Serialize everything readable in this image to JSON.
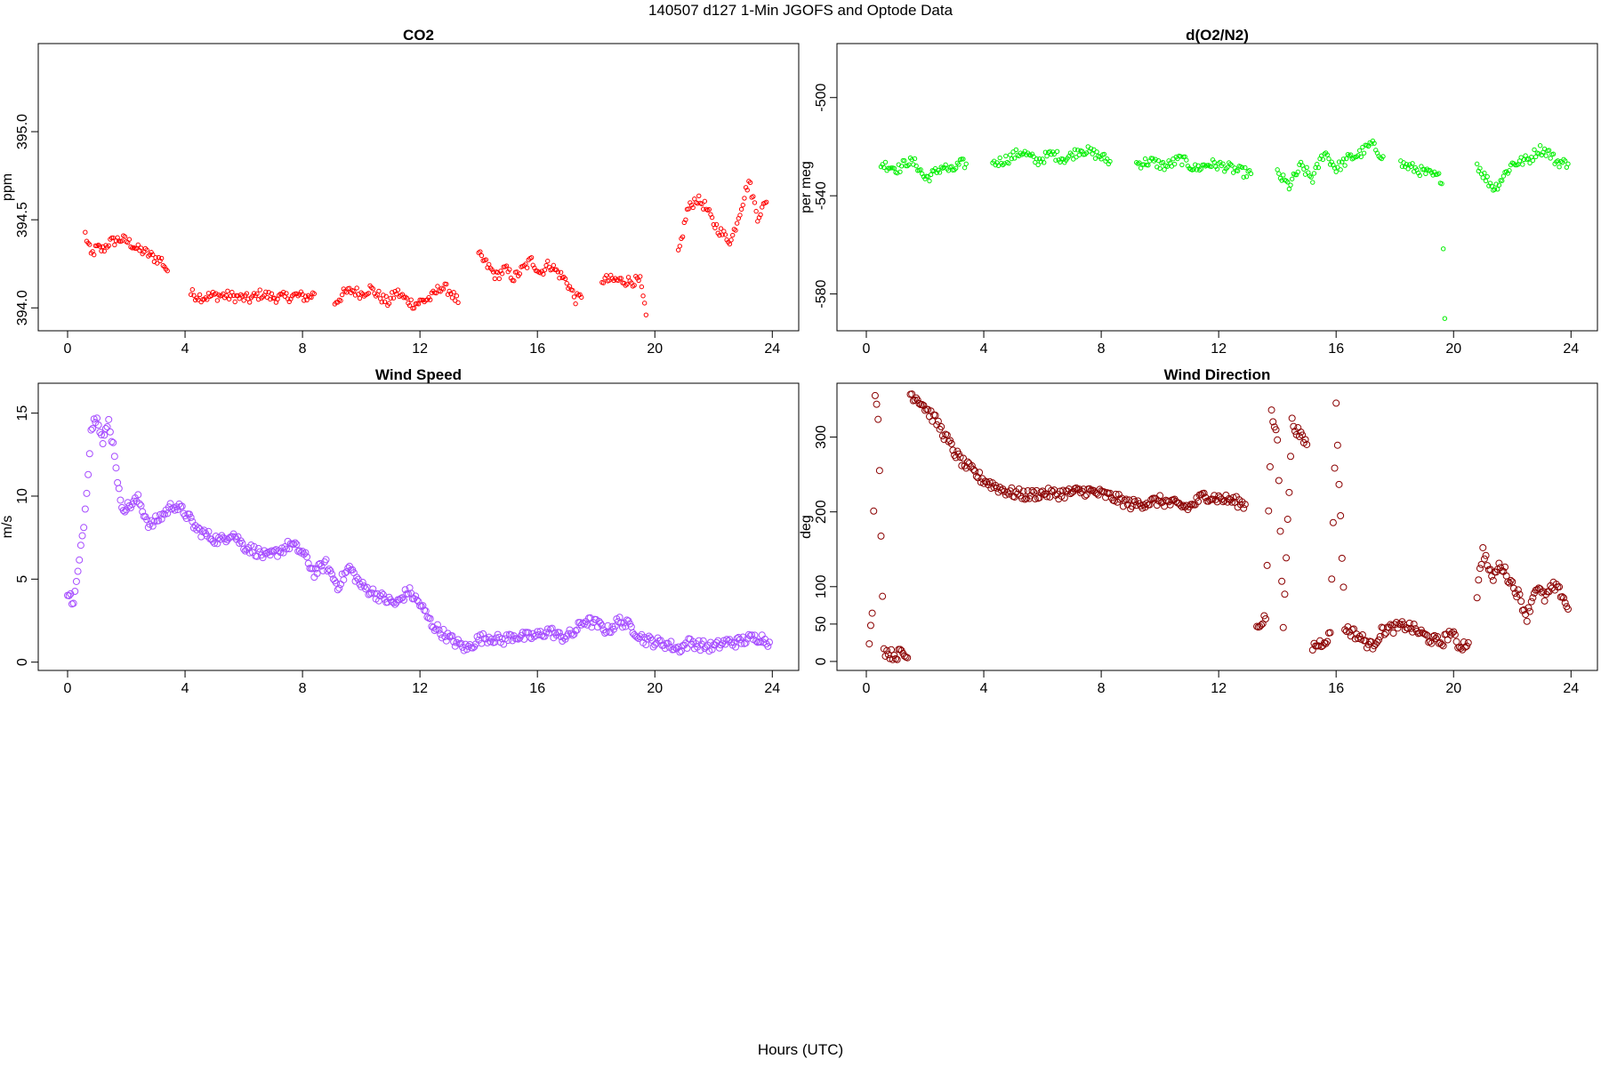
{
  "page": {
    "title": "140507   d127   1-Min  JGOFS and Optode Data",
    "footer_xlabel": "Hours (UTC)"
  },
  "chart_data": [
    {
      "id": "co2",
      "type": "scatter",
      "title": "CO2",
      "xlabel": "",
      "ylabel": "ppm",
      "xlim": [
        -1,
        24.9
      ],
      "ylim": [
        393.87,
        395.5
      ],
      "x_ticks": [
        0,
        4,
        8,
        12,
        16,
        20,
        24
      ],
      "y_ticks": [
        394.0,
        394.5,
        395.0
      ],
      "y_tick_labels": [
        "394.0",
        "394.5",
        "395.0"
      ],
      "color": "#ff0000",
      "segments": [
        {
          "x": [
            0.6,
            0.8,
            1.0,
            1.2,
            1.4,
            1.6,
            1.8,
            2.0,
            2.2,
            2.4,
            2.6,
            2.8,
            3.0,
            3.2,
            3.4
          ],
          "y": [
            394.42,
            394.3,
            394.34,
            394.33,
            394.37,
            394.38,
            394.39,
            394.38,
            394.36,
            394.33,
            394.32,
            394.3,
            394.28,
            394.27,
            394.21
          ]
        },
        {
          "x": [
            4.2,
            4.6,
            5.0,
            5.4,
            5.8,
            6.2,
            6.6,
            7.0,
            7.4,
            7.8,
            8.2,
            8.4
          ],
          "y": [
            394.08,
            394.06,
            394.07,
            394.07,
            394.06,
            394.05,
            394.08,
            394.06,
            394.06,
            394.07,
            394.06,
            394.08
          ]
        },
        {
          "x": [
            9.1,
            9.4,
            9.7,
            10.0,
            10.3,
            10.6,
            10.9,
            11.2,
            11.5,
            11.8,
            12.1,
            12.4,
            12.7,
            13.0,
            13.3
          ],
          "y": [
            394.03,
            394.08,
            394.1,
            394.08,
            394.11,
            394.07,
            394.03,
            394.09,
            394.05,
            394.02,
            394.04,
            394.06,
            394.12,
            394.1,
            394.03
          ]
        },
        {
          "x": [
            14.0,
            14.3,
            14.6,
            14.9,
            15.2,
            15.5,
            15.8,
            16.1,
            16.4,
            16.7,
            17.0,
            17.3,
            17.5
          ],
          "y": [
            394.3,
            394.24,
            394.18,
            394.22,
            394.17,
            394.22,
            394.27,
            394.2,
            394.25,
            394.2,
            394.15,
            394.05,
            394.06
          ]
        },
        {
          "x": [
            18.2,
            19.5,
            19.7
          ],
          "y": [
            394.16,
            394.15,
            393.96
          ]
        },
        {
          "x": [
            20.8,
            21.1,
            21.4,
            21.7,
            22.0,
            22.3,
            22.6,
            22.9,
            23.2,
            23.5,
            23.8
          ],
          "y": [
            394.3,
            394.55,
            394.62,
            394.58,
            394.48,
            394.42,
            394.38,
            394.55,
            394.72,
            394.52,
            394.6
          ]
        }
      ]
    },
    {
      "id": "o2n2",
      "type": "scatter",
      "title": "d(O2/N2)",
      "xlabel": "",
      "ylabel": "per meg",
      "xlim": [
        -1,
        24.9
      ],
      "ylim": [
        -595,
        -478
      ],
      "x_ticks": [
        0,
        4,
        8,
        12,
        16,
        20,
        24
      ],
      "y_ticks": [
        -580,
        -540,
        -500
      ],
      "y_tick_labels": [
        "-580",
        "-540",
        "-500"
      ],
      "color": "#00ee00",
      "segments": [
        {
          "x": [
            0.5,
            0.8,
            1.1,
            1.4,
            1.7,
            2.0,
            2.3,
            2.6,
            2.9,
            3.2,
            3.4
          ],
          "y": [
            -527,
            -528,
            -529,
            -526,
            -527,
            -533,
            -531,
            -528,
            -530,
            -527,
            -527
          ]
        },
        {
          "x": [
            4.3,
            4.8,
            5.3,
            5.8,
            6.3,
            6.8,
            7.3,
            7.8,
            8.3
          ],
          "y": [
            -527,
            -525,
            -522,
            -526,
            -523,
            -525,
            -521,
            -523,
            -526
          ]
        },
        {
          "x": [
            9.2,
            9.7,
            10.2,
            10.7,
            11.2,
            11.7,
            12.2,
            12.7,
            13.1
          ],
          "y": [
            -527,
            -526,
            -528,
            -525,
            -529,
            -527,
            -528,
            -530,
            -531
          ]
        },
        {
          "x": [
            14.0,
            14.4,
            14.8,
            15.2,
            15.6,
            16.0,
            16.4,
            16.8,
            17.2,
            17.6
          ],
          "y": [
            -531,
            -536,
            -528,
            -533,
            -522,
            -529,
            -525,
            -523,
            -519,
            -524
          ]
        },
        {
          "x": [
            18.2,
            19.6,
            19.7
          ],
          "y": [
            -527,
            -533,
            -590
          ]
        },
        {
          "x": [
            20.8,
            21.1,
            21.4,
            21.7,
            22.0,
            22.3,
            22.6,
            22.9,
            23.2,
            23.5,
            23.9
          ],
          "y": [
            -527,
            -533,
            -537,
            -532,
            -527,
            -526,
            -525,
            -521,
            -522,
            -526,
            -527
          ]
        }
      ]
    },
    {
      "id": "wind_speed",
      "type": "scatter",
      "title": "Wind Speed",
      "xlabel": "",
      "ylabel": "m/s",
      "xlim": [
        -1,
        24.9
      ],
      "ylim": [
        -0.5,
        16.8
      ],
      "x_ticks": [
        0,
        4,
        8,
        12,
        16,
        20,
        24
      ],
      "y_ticks": [
        0,
        5,
        10,
        15
      ],
      "y_tick_labels": [
        "0",
        "5",
        "10",
        "15"
      ],
      "color": "#a64dff",
      "segments": [
        {
          "x": [
            0.0,
            0.2,
            0.4,
            0.6,
            0.8,
            1.0,
            1.2,
            1.4,
            1.6,
            1.8,
            2.0,
            2.4,
            2.8,
            3.2,
            3.6,
            4.0,
            4.4,
            4.8,
            5.2,
            5.6,
            6.0,
            6.4,
            6.8,
            7.2,
            7.6,
            8.0,
            8.4,
            8.8,
            9.2,
            9.6,
            10.0,
            10.4,
            10.8,
            11.2,
            11.6,
            12.0,
            12.4,
            12.8,
            13.2,
            13.6,
            14.0,
            14.4,
            14.8,
            15.2,
            15.6,
            16.0,
            16.4,
            16.8,
            17.2,
            17.6,
            18.0,
            18.4,
            18.8,
            19.2,
            19.6,
            20.0,
            20.4,
            20.8,
            21.2,
            21.6,
            22.0,
            22.4,
            22.8,
            23.2,
            23.6,
            23.9
          ],
          "y": [
            4.3,
            3.5,
            6.0,
            9.2,
            14.0,
            15.0,
            13.2,
            14.5,
            12.6,
            9.5,
            9.3,
            9.8,
            8.2,
            8.8,
            9.5,
            9.0,
            8.0,
            7.6,
            7.3,
            7.8,
            7.0,
            6.7,
            6.3,
            6.7,
            7.1,
            6.6,
            5.4,
            5.9,
            4.6,
            5.7,
            4.6,
            4.2,
            3.8,
            3.5,
            4.3,
            3.5,
            2.3,
            1.7,
            1.2,
            0.8,
            1.4,
            1.5,
            1.3,
            1.6,
            1.5,
            1.6,
            1.9,
            1.5,
            1.7,
            2.5,
            2.3,
            1.9,
            2.5,
            2.1,
            1.4,
            1.2,
            1.1,
            0.8,
            1.2,
            1.0,
            0.9,
            1.2,
            1.2,
            1.4,
            1.5,
            1.2
          ]
        }
      ]
    },
    {
      "id": "wind_direction",
      "type": "scatter",
      "title": "Wind Direction",
      "xlabel": "",
      "ylabel": "deg",
      "xlim": [
        -1,
        24.9
      ],
      "ylim": [
        -12,
        372
      ],
      "x_ticks": [
        0,
        4,
        8,
        12,
        16,
        20,
        24
      ],
      "y_ticks": [
        0,
        50,
        100,
        200,
        300
      ],
      "y_tick_labels": [
        "0",
        "50",
        "100",
        "200",
        "300"
      ],
      "color": "#8b0000",
      "segments": [
        {
          "x": [
            0.1,
            0.2,
            0.3,
            0.4,
            0.6,
            0.8,
            1.0,
            1.2,
            1.4
          ],
          "y": [
            30,
            60,
            350,
            330,
            15,
            10,
            8,
            12,
            5
          ]
        },
        {
          "x": [
            1.5,
            1.8,
            2.1,
            2.4,
            2.7,
            3.0,
            3.3,
            3.6,
            3.9,
            4.2,
            4.6,
            5.0,
            5.5,
            6.0,
            6.5,
            7.0,
            7.5,
            8.0,
            8.5,
            9.0,
            9.5,
            10.0,
            10.5,
            11.0,
            11.5,
            12.0,
            12.5,
            12.9
          ],
          "y": [
            358,
            350,
            335,
            320,
            300,
            280,
            265,
            255,
            245,
            238,
            230,
            225,
            222,
            225,
            224,
            226,
            228,
            224,
            218,
            210,
            212,
            215,
            210,
            206,
            222,
            218,
            215,
            210
          ]
        },
        {
          "x": [
            13.3,
            13.6,
            13.8,
            14.0,
            14.2,
            14.5,
            14.8,
            15.0
          ],
          "y": [
            45,
            60,
            330,
            300,
            50,
            320,
            300,
            290
          ]
        },
        {
          "x": [
            15.2,
            15.5,
            15.8,
            16.0,
            16.3,
            16.6,
            16.9,
            17.2,
            17.6,
            18.0,
            18.4,
            18.8,
            19.2,
            19.6,
            19.9,
            20.2,
            20.5
          ],
          "y": [
            20,
            25,
            35,
            340,
            45,
            38,
            30,
            20,
            42,
            45,
            48,
            40,
            30,
            25,
            40,
            20,
            25
          ]
        },
        {
          "x": [
            20.8,
            21.0,
            21.3,
            21.6,
            21.9,
            22.2,
            22.5,
            22.8,
            23.1,
            23.4,
            23.7,
            23.9
          ],
          "y": [
            90,
            150,
            110,
            130,
            110,
            90,
            60,
            100,
            85,
            100,
            90,
            70
          ]
        }
      ]
    }
  ]
}
